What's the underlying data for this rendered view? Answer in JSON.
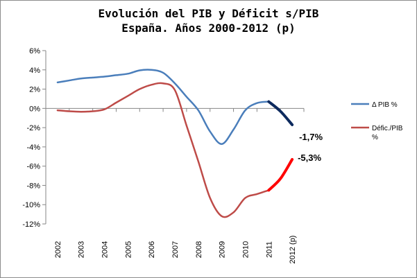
{
  "chart_data": {
    "type": "line",
    "title_line1": "Evolución del PIB y Déficit s/PIB",
    "title_line2": "España. Años 2000-2012 (p)",
    "categories": [
      "2002",
      "2003",
      "2004",
      "2005",
      "2006",
      "2007",
      "2008",
      "2009",
      "2010",
      "2011",
      "2012 (p)"
    ],
    "ylim": [
      -12,
      6
    ],
    "yticks": [
      6,
      4,
      2,
      0,
      -2,
      -4,
      -6,
      -8,
      -10,
      -12
    ],
    "ytick_labels": [
      "6%",
      "4%",
      "2%",
      "0%",
      "-2%",
      "-4%",
      "-6%",
      "-8%",
      "-10%",
      "-12%"
    ],
    "grid": false,
    "legend_position": "right",
    "series": [
      {
        "name": "Δ PIB %",
        "color": "#4a7ebb",
        "highlight_color": "#0d2a5e",
        "x": [
          0,
          0.5,
          1,
          1.5,
          2,
          2.5,
          3,
          3.5,
          4,
          4.5,
          5,
          5.5,
          6,
          6.5,
          7,
          7.5,
          8,
          8.5,
          9,
          9.5,
          10
        ],
        "values": [
          2.7,
          2.9,
          3.1,
          3.2,
          3.3,
          3.45,
          3.6,
          3.95,
          4.0,
          3.7,
          2.6,
          1.2,
          -0.2,
          -2.4,
          -3.7,
          -2.2,
          -0.2,
          0.55,
          0.7,
          -0.3,
          -1.7
        ],
        "highlight_from": 18,
        "end_label": "-1,7%"
      },
      {
        "name": "Défic./PIB %",
        "color": "#be4b48",
        "highlight_color": "#ff0000",
        "x": [
          0,
          0.5,
          1,
          1.5,
          2,
          2.5,
          3,
          3.5,
          4,
          4.5,
          5,
          5.5,
          6,
          6.5,
          7,
          7.5,
          8,
          8.5,
          9,
          9.5,
          10
        ],
        "values": [
          -0.2,
          -0.3,
          -0.35,
          -0.3,
          -0.1,
          0.6,
          1.3,
          2.0,
          2.45,
          2.6,
          1.9,
          -1.8,
          -5.5,
          -9.3,
          -11.2,
          -10.8,
          -9.3,
          -8.9,
          -8.5,
          -7.3,
          -5.3
        ],
        "highlight_from": 18,
        "end_label": "-5,3%"
      }
    ]
  }
}
